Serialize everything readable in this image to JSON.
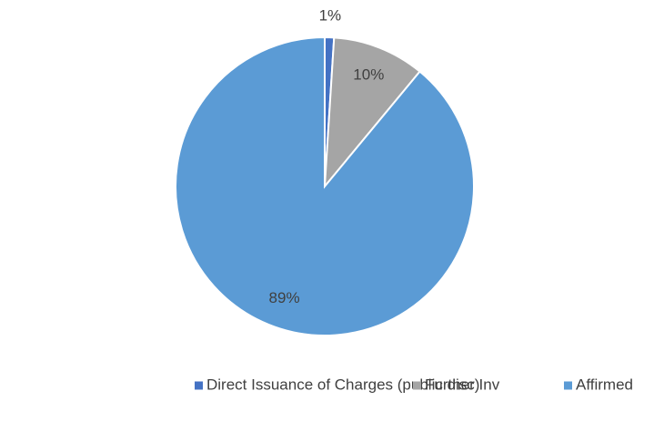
{
  "chart_data": {
    "type": "pie",
    "categories": [
      "Direct Issuance of Charges (public disc)",
      "Further Inv",
      "Affirmed"
    ],
    "values": [
      1,
      10,
      89
    ],
    "value_labels": [
      "1%",
      "10%",
      "89%"
    ],
    "colors": [
      "#4472c4",
      "#a5a5a5",
      "#5b9bd5"
    ],
    "legend": "bottom"
  }
}
